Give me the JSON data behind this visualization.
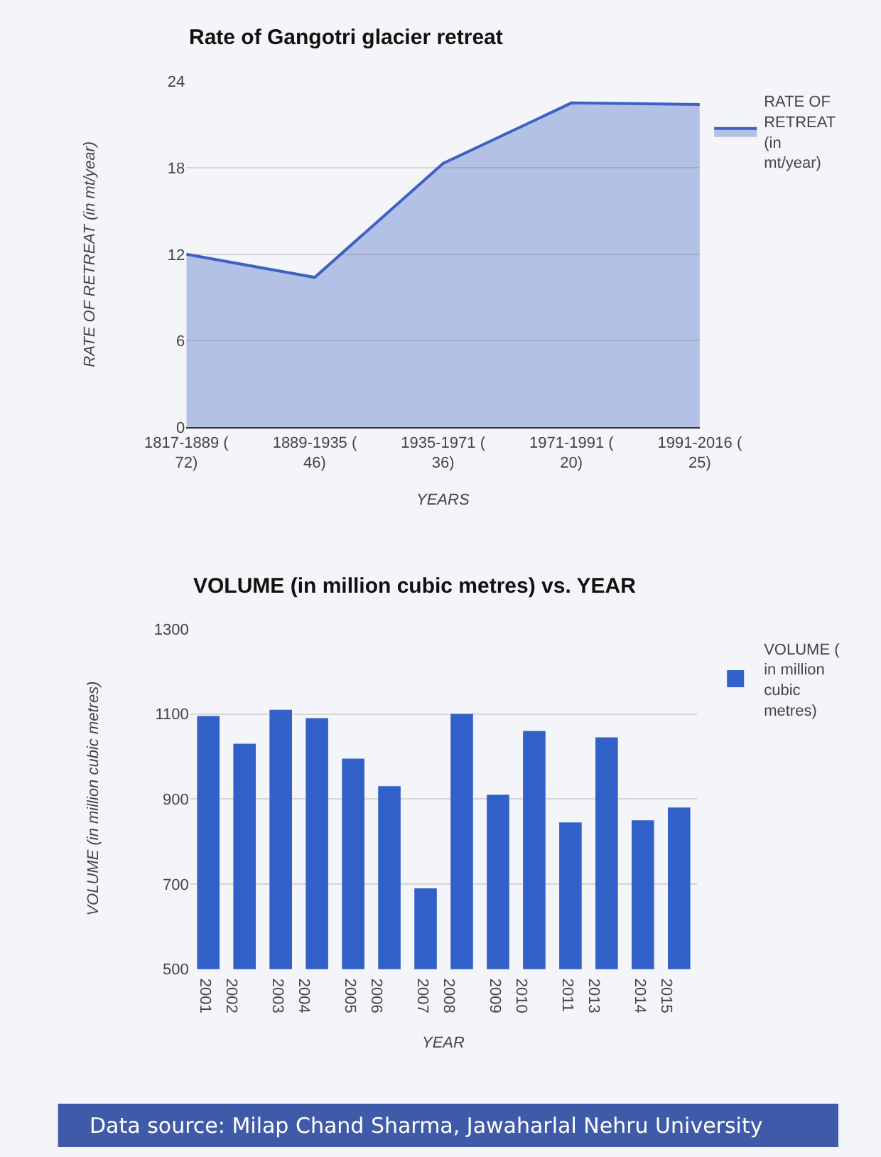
{
  "chart_data": [
    {
      "type": "area",
      "title": "Rate of Gangotri glacier retreat",
      "xlabel": "YEARS",
      "ylabel": "RATE OF RETREAT (in mt/year)",
      "categories": [
        "1817-1889 ( 72)",
        "1889-1935 ( 46)",
        "1935-1971 ( 36)",
        "1971-1991 ( 20)",
        "1991-2016 ( 25)"
      ],
      "series": [
        {
          "name": "RATE OF RETREAT (in mt/year)",
          "color": "#3d62c4",
          "values": [
            12.0,
            10.4,
            18.3,
            22.5,
            22.4
          ]
        }
      ],
      "ylim": [
        0,
        24
      ],
      "yticks": [
        0,
        6,
        12,
        18,
        24
      ],
      "grid": "y",
      "legend": "top right"
    },
    {
      "type": "bar",
      "title": "VOLUME (in million cubic metres) vs. YEAR",
      "xlabel": "YEAR",
      "ylabel": "VOLUME (in million cubic metres)",
      "categories": [
        "2001",
        "2002",
        "2003",
        "2004",
        "2005",
        "2006",
        "2007",
        "2008",
        "2009",
        "2010",
        "2011",
        "2013",
        "2014",
        "2015"
      ],
      "series": [
        {
          "name": "VOLUME ( in million cubic metres)",
          "color": "#3060c8",
          "values": [
            1095,
            1030,
            1110,
            1090,
            995,
            930,
            690,
            1100,
            910,
            1060,
            845,
            1045,
            850,
            880
          ]
        }
      ],
      "ylim": [
        500,
        1300
      ],
      "yticks": [
        500,
        700,
        900,
        1100,
        1300
      ],
      "grid": "y",
      "legend": "top right",
      "annotations": [
        "Data source: Milap Chand Sharma, Jawaharlal Nehru University"
      ]
    }
  ]
}
